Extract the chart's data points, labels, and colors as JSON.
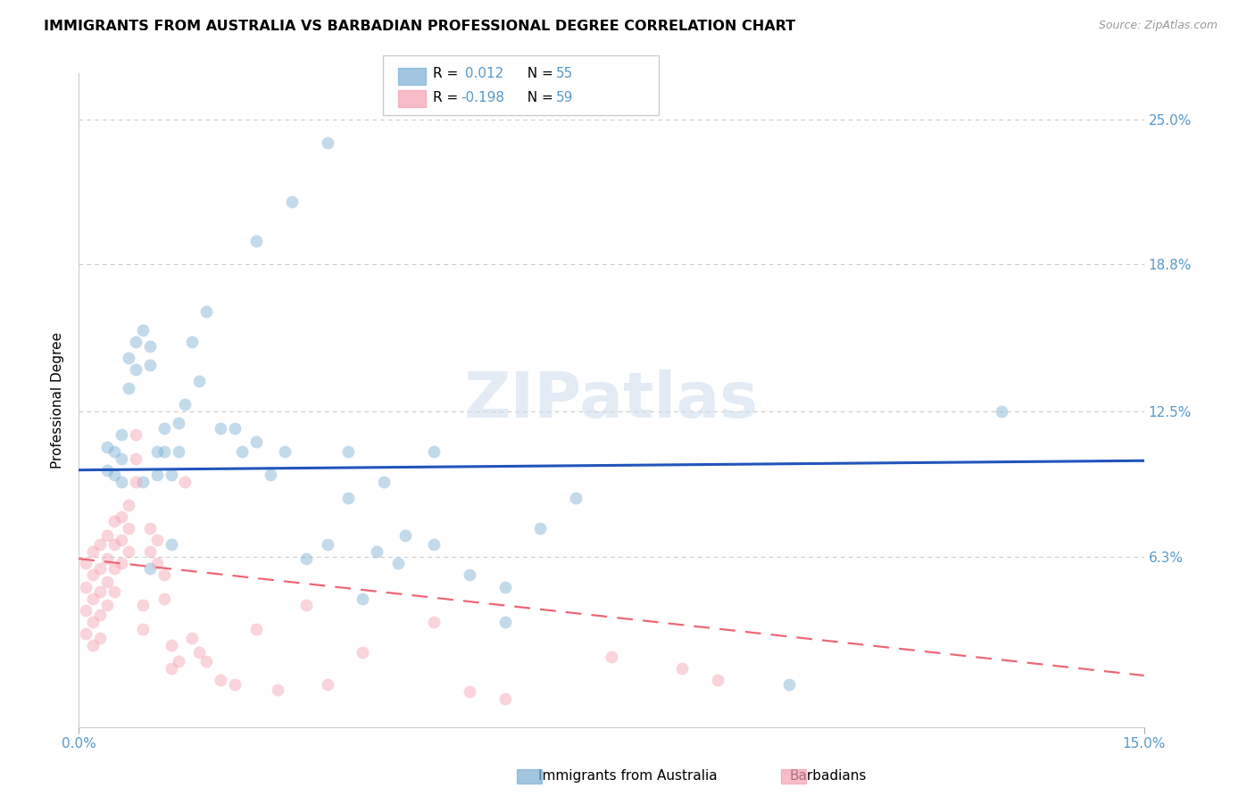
{
  "title": "IMMIGRANTS FROM AUSTRALIA VS BARBADIAN PROFESSIONAL DEGREE CORRELATION CHART",
  "source": "Source: ZipAtlas.com",
  "ylabel": "Professional Degree",
  "ytick_labels": [
    "25.0%",
    "18.8%",
    "12.5%",
    "6.3%"
  ],
  "ytick_values": [
    0.25,
    0.188,
    0.125,
    0.063
  ],
  "xmin": 0.0,
  "xmax": 0.15,
  "ymin": -0.01,
  "ymax": 0.27,
  "blue_r": "0.012",
  "blue_n": "55",
  "pink_r": "-0.198",
  "pink_n": "59",
  "blue_scatter_x": [
    0.004,
    0.004,
    0.005,
    0.005,
    0.006,
    0.006,
    0.006,
    0.007,
    0.007,
    0.008,
    0.008,
    0.009,
    0.009,
    0.01,
    0.01,
    0.01,
    0.011,
    0.011,
    0.012,
    0.012,
    0.013,
    0.013,
    0.014,
    0.014,
    0.015,
    0.016,
    0.017,
    0.018,
    0.02,
    0.022,
    0.023,
    0.025,
    0.027,
    0.029,
    0.032,
    0.035,
    0.038,
    0.042,
    0.046,
    0.05,
    0.025,
    0.03,
    0.035,
    0.04,
    0.045,
    0.05,
    0.055,
    0.06,
    0.065,
    0.07,
    0.038,
    0.043,
    0.06,
    0.1,
    0.13
  ],
  "blue_scatter_y": [
    0.11,
    0.1,
    0.108,
    0.098,
    0.115,
    0.105,
    0.095,
    0.148,
    0.135,
    0.155,
    0.143,
    0.16,
    0.095,
    0.153,
    0.145,
    0.058,
    0.108,
    0.098,
    0.118,
    0.108,
    0.098,
    0.068,
    0.12,
    0.108,
    0.128,
    0.155,
    0.138,
    0.168,
    0.118,
    0.118,
    0.108,
    0.112,
    0.098,
    0.108,
    0.062,
    0.068,
    0.088,
    0.065,
    0.072,
    0.108,
    0.198,
    0.215,
    0.24,
    0.045,
    0.06,
    0.068,
    0.055,
    0.05,
    0.075,
    0.088,
    0.108,
    0.095,
    0.035,
    0.008,
    0.125
  ],
  "pink_scatter_x": [
    0.001,
    0.001,
    0.001,
    0.001,
    0.002,
    0.002,
    0.002,
    0.002,
    0.002,
    0.003,
    0.003,
    0.003,
    0.003,
    0.003,
    0.004,
    0.004,
    0.004,
    0.004,
    0.005,
    0.005,
    0.005,
    0.005,
    0.006,
    0.006,
    0.006,
    0.007,
    0.007,
    0.007,
    0.008,
    0.008,
    0.008,
    0.009,
    0.009,
    0.01,
    0.01,
    0.011,
    0.011,
    0.012,
    0.012,
    0.013,
    0.013,
    0.014,
    0.015,
    0.016,
    0.017,
    0.018,
    0.02,
    0.022,
    0.025,
    0.028,
    0.032,
    0.035,
    0.04,
    0.05,
    0.055,
    0.06,
    0.075,
    0.085,
    0.09
  ],
  "pink_scatter_y": [
    0.06,
    0.05,
    0.04,
    0.03,
    0.065,
    0.055,
    0.045,
    0.035,
    0.025,
    0.068,
    0.058,
    0.048,
    0.038,
    0.028,
    0.072,
    0.062,
    0.052,
    0.042,
    0.078,
    0.068,
    0.058,
    0.048,
    0.08,
    0.07,
    0.06,
    0.085,
    0.075,
    0.065,
    0.115,
    0.105,
    0.095,
    0.042,
    0.032,
    0.075,
    0.065,
    0.07,
    0.06,
    0.055,
    0.045,
    0.025,
    0.015,
    0.018,
    0.095,
    0.028,
    0.022,
    0.018,
    0.01,
    0.008,
    0.032,
    0.006,
    0.042,
    0.008,
    0.022,
    0.035,
    0.005,
    0.002,
    0.02,
    0.015,
    0.01
  ],
  "blue_line_x": [
    0.0,
    0.15
  ],
  "blue_line_y": [
    0.1,
    0.104
  ],
  "pink_line_x": [
    0.0,
    0.15
  ],
  "pink_line_y": [
    0.062,
    0.012
  ],
  "watermark_text": "ZIPatlas",
  "scatter_size": 100,
  "scatter_alpha": 0.45,
  "blue_color": "#7BAFD4",
  "pink_color": "#F4A0B0",
  "blue_line_color": "#2255BB",
  "pink_line_color": "#EE6677",
  "grid_color": "#CCCCCC",
  "grid_linestyle": "--",
  "title_fontsize": 11.5,
  "axis_label_fontsize": 11,
  "tick_fontsize": 11,
  "ytick_color": "#5599CC",
  "xtick_color": "#5599CC",
  "legend_r_color": "#5599CC",
  "legend_n_color": "#5599CC",
  "source_color": "#999999"
}
